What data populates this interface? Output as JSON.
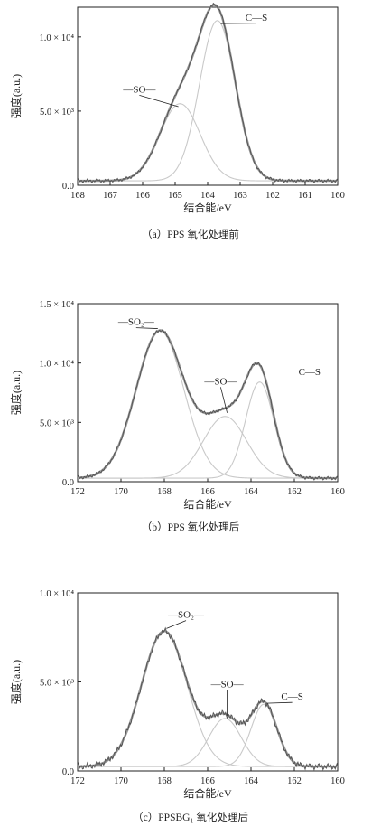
{
  "chart_data": [
    {
      "type": "line",
      "caption": "（a）PPS 氧化处理前",
      "xlabel": "结合能/eV",
      "ylabel": "强度(a.u.)",
      "xlim": [
        168,
        160
      ],
      "ylim": [
        0,
        12000
      ],
      "xticks": [
        168,
        167,
        166,
        165,
        164,
        163,
        162,
        161,
        160
      ],
      "xtick_labels": [
        "168",
        "167",
        "166",
        "165",
        "164",
        "163",
        "162",
        "161",
        "160"
      ],
      "yticks": [
        0,
        5000,
        10000
      ],
      "ytick_labels": [
        "0.0",
        "5.0 × 10³",
        "1.0 × 10⁴"
      ],
      "components": [
        {
          "label": "—SO—",
          "center": 164.85,
          "sigma": 0.62,
          "height": 5200
        },
        {
          "label": "C—S",
          "center": 163.7,
          "sigma": 0.55,
          "height": 10800
        }
      ],
      "baseline": 300,
      "annotations": [
        {
          "text": "C—S",
          "x": 162.5,
          "y": 11100,
          "target_x": 163.6,
          "target_y": 10900
        },
        {
          "text": "—SO—",
          "x": 166.1,
          "y": 6250,
          "target_x": 164.9,
          "target_y": 5300
        }
      ]
    },
    {
      "type": "line",
      "caption": "（b）PPS 氧化处理后",
      "xlabel": "结合能/eV",
      "ylabel": "强度(a.u.)",
      "xlim": [
        172,
        160
      ],
      "ylim": [
        0,
        15000
      ],
      "xticks": [
        172,
        170,
        168,
        166,
        164,
        162,
        160
      ],
      "xtick_labels": [
        "172",
        "170",
        "168",
        "166",
        "164",
        "162",
        "160"
      ],
      "yticks": [
        0,
        5000,
        10000,
        15000
      ],
      "ytick_labels": [
        "0.0",
        "5.0 × 10³",
        "1.0 × 10⁴",
        "1.5 × 10⁴"
      ],
      "components": [
        {
          "label": "—SO₂—",
          "center": 168.2,
          "sigma": 1.1,
          "height": 12400
        },
        {
          "label": "—SO—",
          "center": 165.2,
          "sigma": 1.0,
          "height": 5200
        },
        {
          "label": "C—S",
          "center": 163.6,
          "sigma": 0.65,
          "height": 8100
        }
      ],
      "baseline": 300,
      "annotations": [
        {
          "text": "—SO₂—",
          "x": 169.3,
          "y": 13200,
          "target_x": 168.3,
          "target_y": 12900
        },
        {
          "text": "—SO—",
          "x": 165.4,
          "y": 8200,
          "target_x": 165.1,
          "target_y": 5800
        },
        {
          "text": "C—S",
          "x": 161.3,
          "y": 9000,
          "target_x": null,
          "target_y": null
        }
      ]
    },
    {
      "type": "line",
      "caption": "（c）PPSBG₁ 氧化处理后",
      "xlabel": "结合能/eV",
      "ylabel": "强度(a.u.)",
      "xlim": [
        172,
        160
      ],
      "ylim": [
        0,
        10000
      ],
      "xticks": [
        172,
        170,
        168,
        166,
        164,
        162,
        160
      ],
      "xtick_labels": [
        "172",
        "170",
        "168",
        "166",
        "164",
        "162",
        "160"
      ],
      "yticks": [
        0,
        5000,
        10000
      ],
      "ytick_labels": [
        "0.0",
        "5.0 × 10³",
        "1.0 × 10⁴"
      ],
      "components": [
        {
          "label": "—SO₂—",
          "center": 168.0,
          "sigma": 1.05,
          "height": 7600
        },
        {
          "label": "—SO—",
          "center": 165.2,
          "sigma": 0.75,
          "height": 2700
        },
        {
          "label": "C—S",
          "center": 163.4,
          "sigma": 0.6,
          "height": 3500
        }
      ],
      "baseline": 250,
      "annotations": [
        {
          "text": "—SO₂—",
          "x": 167.0,
          "y": 8600,
          "target_x": 167.9,
          "target_y": 8000
        },
        {
          "text": "—SO—",
          "x": 165.1,
          "y": 4700,
          "target_x": 165.1,
          "target_y": 3100
        },
        {
          "text": "C—S",
          "x": 162.1,
          "y": 4000,
          "target_x": 163.3,
          "target_y": 3800
        }
      ]
    }
  ]
}
